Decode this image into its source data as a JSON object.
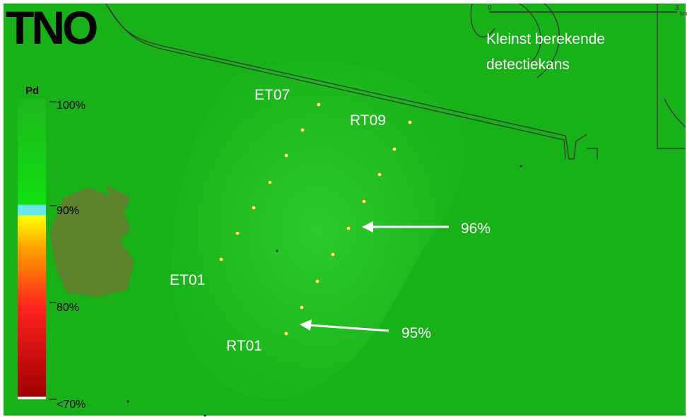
{
  "logo": "TNO",
  "title": [
    "Kleinst berekende",
    "detectiekans"
  ],
  "legend": {
    "title": "Pd",
    "labels": [
      "100%",
      "90%",
      "80%",
      "<70%"
    ]
  },
  "turbines": [
    "ET07",
    "RT09",
    "ET01",
    "RT01"
  ],
  "annotations": [
    "96%",
    "95%"
  ],
  "scale_bar": {
    "start": "0",
    "end": "3",
    "unit": "km"
  }
}
